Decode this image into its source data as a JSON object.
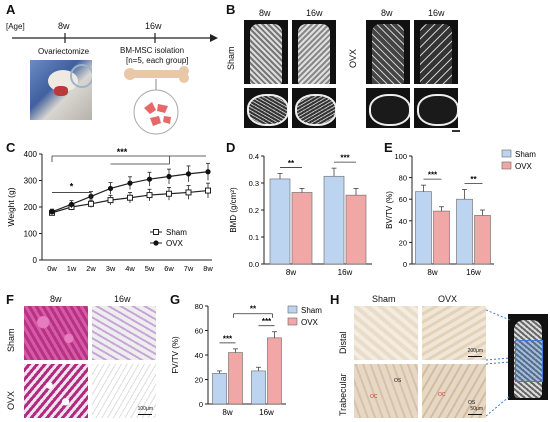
{
  "panels": {
    "A": {
      "letter": "A",
      "age_label": "[Age]",
      "t1": "8w",
      "t2": "16w",
      "event1": "Ovariectomize",
      "event2_line1": "BM-MSC isolation",
      "event2_line2": "[n=5, each group]"
    },
    "B": {
      "letter": "B",
      "sham_label": "Sham",
      "ovx_label": "OVX",
      "col_8w": "8w",
      "col_16w": "16w"
    },
    "C": {
      "letter": "C"
    },
    "D": {
      "letter": "D"
    },
    "E": {
      "letter": "E"
    },
    "F": {
      "letter": "F",
      "col_8w": "8w",
      "col_16w": "16w",
      "row_sham": "Sham",
      "row_ovx": "OVX",
      "scale": "100μm"
    },
    "G": {
      "letter": "G"
    },
    "H": {
      "letter": "H",
      "col_sham": "Sham",
      "col_ovx": "OVX",
      "row_distal": "Distal",
      "row_trab": "Trabecular",
      "scale1": "200μm",
      "scale2": "50μm",
      "os": "OS",
      "oc": "OC"
    }
  },
  "colors": {
    "sham": "#bcd4f0",
    "ovx": "#f2a7a7",
    "bar_edge": "#666666",
    "he_pink": "#c23a8c",
    "bone": "#dcdcdc"
  },
  "chart_data": [
    {
      "id": "C",
      "type": "line",
      "ylabel": "Weight (g)",
      "x": [
        "0w",
        "1w",
        "2w",
        "3w",
        "4w",
        "5w",
        "6w",
        "7w",
        "8w"
      ],
      "ylim": [
        0,
        400
      ],
      "yticks": [
        0,
        100,
        200,
        300,
        400
      ],
      "series": [
        {
          "name": "Sham",
          "values": [
            178,
            200,
            212,
            226,
            235,
            245,
            250,
            255,
            262
          ],
          "err": [
            10,
            12,
            14,
            18,
            20,
            22,
            24,
            26,
            28
          ],
          "marker": "open-square"
        },
        {
          "name": "OVX",
          "values": [
            182,
            210,
            240,
            270,
            290,
            305,
            315,
            325,
            333
          ],
          "err": [
            10,
            14,
            18,
            22,
            24,
            26,
            28,
            30,
            32
          ],
          "marker": "filled-circle"
        }
      ],
      "annotations": [
        {
          "text": "***",
          "from": "0w",
          "to": "5w"
        },
        {
          "text": "*",
          "from": "0w",
          "to": "2w"
        }
      ],
      "legend": "bottom-right"
    },
    {
      "id": "D",
      "type": "bar",
      "ylabel": "BMD (g/cm²)",
      "categories": [
        "8w",
        "16w"
      ],
      "ylim": [
        0,
        0.4
      ],
      "yticks": [
        "0.0",
        "0.1",
        "0.2",
        "0.3",
        "0.4"
      ],
      "series": [
        {
          "name": "Sham",
          "values": [
            0.315,
            0.325
          ],
          "err": [
            0.02,
            0.03
          ]
        },
        {
          "name": "OVX",
          "values": [
            0.265,
            0.255
          ],
          "err": [
            0.015,
            0.025
          ]
        }
      ],
      "sig": [
        "**",
        "***"
      ]
    },
    {
      "id": "E",
      "type": "bar",
      "ylabel": "BV/TV (%)",
      "categories": [
        "8w",
        "16w"
      ],
      "ylim": [
        0,
        100
      ],
      "yticks": [
        "0",
        "20",
        "40",
        "60",
        "80",
        "100"
      ],
      "series": [
        {
          "name": "Sham",
          "values": [
            67,
            60
          ],
          "err": [
            6,
            9
          ]
        },
        {
          "name": "OVX",
          "values": [
            49,
            45
          ],
          "err": [
            4,
            5
          ]
        }
      ],
      "sig": [
        "***",
        "**"
      ],
      "legend": "right"
    },
    {
      "id": "G",
      "type": "bar",
      "ylabel": "FV/TV (%)",
      "categories": [
        "8w",
        "16w"
      ],
      "ylim": [
        0,
        80
      ],
      "yticks": [
        "0",
        "20",
        "40",
        "60",
        "80"
      ],
      "series": [
        {
          "name": "Sham",
          "values": [
            25,
            27
          ],
          "err": [
            2,
            3
          ]
        },
        {
          "name": "OVX",
          "values": [
            42,
            54
          ],
          "err": [
            3,
            5
          ]
        }
      ],
      "sig": [
        "***",
        "***"
      ],
      "sig_between": "**",
      "legend": "right"
    }
  ]
}
